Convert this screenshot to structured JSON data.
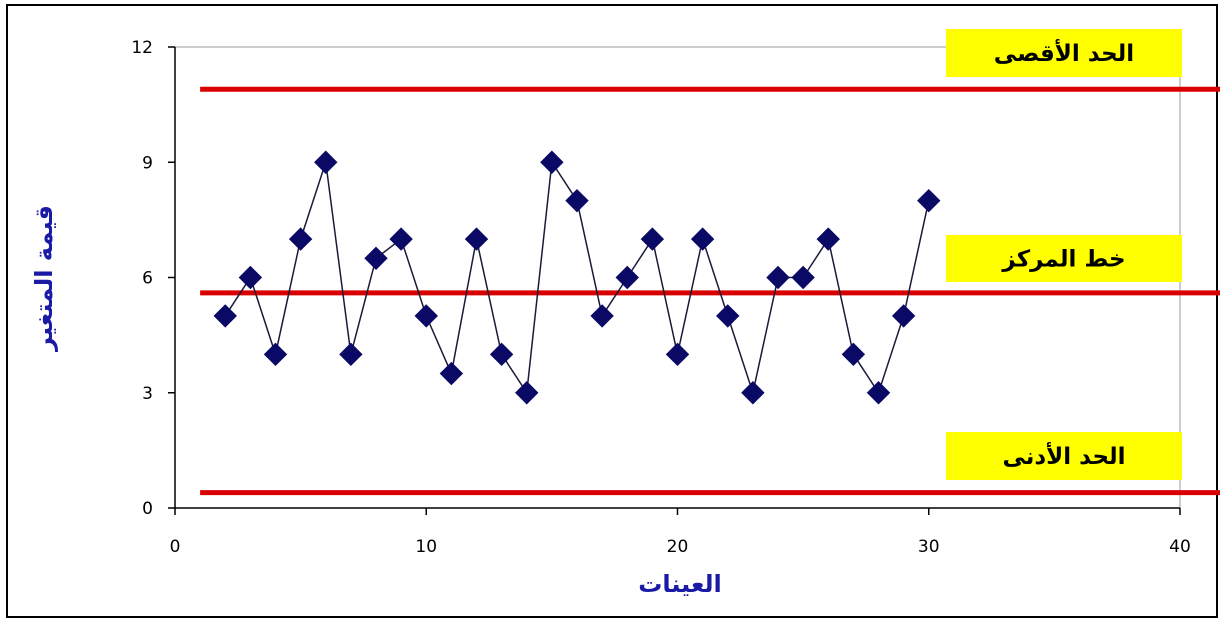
{
  "chart_data": {
    "type": "scatter",
    "xlabel": "العينات",
    "ylabel": "قيمة المتغير",
    "xlim": [
      0,
      40
    ],
    "ylim": [
      0,
      12
    ],
    "x_ticks": [
      "0",
      "10",
      "20",
      "30",
      "40"
    ],
    "y_ticks": [
      "0",
      "3",
      "6",
      "9",
      "12"
    ],
    "grid": false,
    "series": [
      {
        "x": [
          2,
          3,
          4,
          5,
          6,
          7,
          8,
          9,
          10,
          11,
          12,
          13,
          14,
          15,
          16,
          17,
          18,
          19,
          20,
          21,
          22,
          23,
          24,
          25,
          26,
          27,
          28,
          29,
          30
        ],
        "y": [
          5,
          6,
          4,
          7,
          9,
          4,
          6.5,
          7,
          5,
          3.5,
          7,
          4,
          3,
          9,
          8,
          5,
          6,
          7,
          4,
          7,
          5,
          3,
          6,
          6,
          7,
          4,
          3,
          5,
          8
        ],
        "color": "#0a0a66",
        "marker": "diamond"
      }
    ],
    "control_lines": [
      {
        "label": "الحد الأقصى",
        "y": 10.9,
        "color": "#d90000"
      },
      {
        "label": "خط المركز",
        "y": 5.6,
        "color": "#d90000"
      },
      {
        "label": "الحد الأدنى",
        "y": 0.4,
        "color": "#d90000"
      }
    ],
    "label_background": "#ffff00"
  }
}
